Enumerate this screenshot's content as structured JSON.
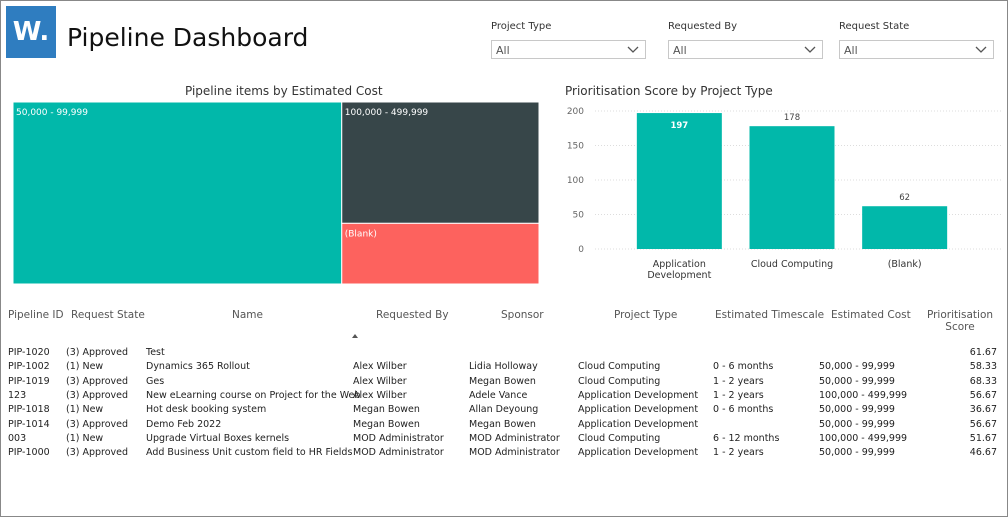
{
  "header": {
    "logo": "W.",
    "title": "Pipeline Dashboard"
  },
  "filters": [
    {
      "label": "Project Type",
      "value": "All"
    },
    {
      "label": "Requested By",
      "value": "All"
    },
    {
      "label": "Request State",
      "value": "All"
    }
  ],
  "chart_data": [
    {
      "type": "treemap",
      "title": "Pipeline items by Estimated Cost",
      "categories": [
        "50,000 - 99,999",
        "100,000 - 499,999",
        "(Blank)"
      ],
      "values": [
        5,
        2,
        1
      ],
      "colors": [
        "#01b8aa",
        "#374649",
        "#fd625e"
      ]
    },
    {
      "type": "bar",
      "title": "Prioritisation Score by Project Type",
      "categories": [
        "Application Development",
        "Cloud Computing",
        "(Blank)"
      ],
      "values": [
        197,
        178,
        62
      ],
      "color": "#01b8aa",
      "ylim": [
        0,
        200
      ],
      "yticks": [
        0,
        50,
        100,
        150,
        200
      ],
      "grid": true
    }
  ],
  "table": {
    "columns": [
      "Pipeline ID",
      "Request State",
      "Name",
      "Requested By",
      "Sponsor",
      "Project Type",
      "Estimated Timescale",
      "Estimated Cost",
      "Prioritisation Score"
    ],
    "rows": [
      [
        "PIP-1020",
        "(3) Approved",
        "Test",
        null,
        null,
        null,
        null,
        null,
        61.67
      ],
      [
        "PIP-1002",
        "(1) New",
        "Dynamics 365 Rollout",
        "Alex Wilber",
        "Lidia Holloway",
        "Cloud Computing",
        "0 - 6 months",
        "50,000 - 99,999",
        58.33
      ],
      [
        "PIP-1019",
        "(3) Approved",
        "Ges",
        "Alex Wilber",
        "Megan Bowen",
        "Cloud Computing",
        "1 - 2 years",
        "50,000 - 99,999",
        68.33
      ],
      [
        "123",
        "(3) Approved",
        "New eLearning course on Project for the Web",
        "Alex Wilber",
        "Adele Vance",
        "Application Development",
        "1 - 2 years",
        "100,000 - 499,999",
        56.67
      ],
      [
        "PIP-1018",
        "(1) New",
        "Hot desk booking system",
        "Megan Bowen",
        "Allan Deyoung",
        "Application Development",
        "0 - 6 months",
        "50,000 - 99,999",
        36.67
      ],
      [
        "PIP-1014",
        "(3) Approved",
        "Demo Feb 2022",
        "Megan Bowen",
        "Megan Bowen",
        "Application Development",
        null,
        "50,000 - 99,999",
        56.67
      ],
      [
        "003",
        "(1) New",
        "Upgrade Virtual Boxes kernels",
        "MOD Administrator",
        "MOD Administrator",
        "Cloud Computing",
        "6 - 12 months",
        "100,000 - 499,999",
        51.67
      ],
      [
        "PIP-1000",
        "(3) Approved",
        "Add Business Unit custom field to HR Fields",
        "MOD Administrator",
        "MOD Administrator",
        "Application Development",
        "1 - 2 years",
        "50,000 - 99,999",
        46.67
      ]
    ]
  }
}
